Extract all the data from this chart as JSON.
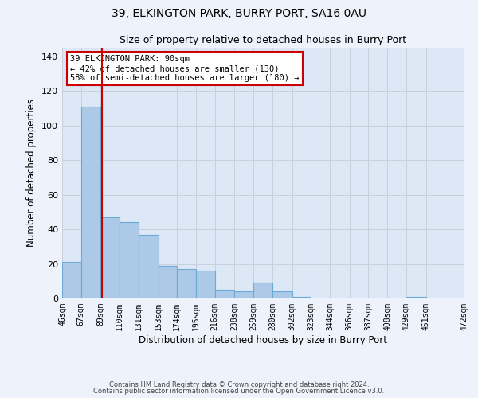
{
  "title1": "39, ELKINGTON PARK, BURRY PORT, SA16 0AU",
  "title2": "Size of property relative to detached houses in Burry Port",
  "xlabel": "Distribution of detached houses by size in Burry Port",
  "ylabel": "Number of detached properties",
  "footnote1": "Contains HM Land Registry data © Crown copyright and database right 2024.",
  "footnote2": "Contains public sector information licensed under the Open Government Licence v3.0.",
  "annotation_line1": "39 ELKINGTON PARK: 90sqm",
  "annotation_line2": "← 42% of detached houses are smaller (130)",
  "annotation_line3": "58% of semi-detached houses are larger (180) →",
  "bar_left_edges": [
    46,
    67,
    89,
    110,
    131,
    153,
    174,
    195,
    216,
    238,
    259,
    280,
    302,
    323,
    344,
    366,
    387,
    408,
    429,
    451
  ],
  "bar_widths": [
    21,
    22,
    21,
    21,
    22,
    21,
    21,
    21,
    22,
    21,
    21,
    22,
    21,
    21,
    22,
    21,
    21,
    21,
    22,
    21
  ],
  "bar_heights": [
    21,
    111,
    47,
    44,
    37,
    19,
    17,
    16,
    5,
    4,
    9,
    4,
    1,
    0,
    0,
    0,
    0,
    0,
    1,
    0
  ],
  "bar_color": "#adc9e8",
  "bar_edge_color": "#6aaad4",
  "red_line_x": 90,
  "red_line_color": "#cc0000",
  "annotation_box_color": "#ffffff",
  "annotation_box_edge": "#cc0000",
  "bg_color": "#dce8f5",
  "fig_bg_color": "#eef2fa",
  "grid_color": "#c8d0de",
  "ylim": [
    0,
    145
  ],
  "yticks": [
    0,
    20,
    40,
    60,
    80,
    100,
    120,
    140
  ],
  "tick_labels": [
    "46sqm",
    "67sqm",
    "89sqm",
    "110sqm",
    "131sqm",
    "153sqm",
    "174sqm",
    "195sqm",
    "216sqm",
    "238sqm",
    "259sqm",
    "280sqm",
    "302sqm",
    "323sqm",
    "344sqm",
    "366sqm",
    "387sqm",
    "408sqm",
    "429sqm",
    "451sqm",
    "472sqm"
  ],
  "xlim_left": 46,
  "xlim_right": 493
}
